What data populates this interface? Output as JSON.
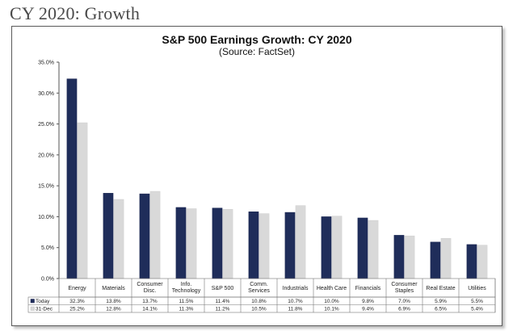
{
  "slide": {
    "title": "CY 2020: Growth"
  },
  "chart_data": {
    "type": "bar",
    "title": "S&P 500 Earnings Growth: CY 2020",
    "subtitle": "(Source: FactSet)",
    "categories": [
      [
        "Energy"
      ],
      [
        "Materials"
      ],
      [
        "Consumer",
        "Disc."
      ],
      [
        "Info.",
        "Technology"
      ],
      [
        "S&P 500"
      ],
      [
        "Comm.",
        "Services"
      ],
      [
        "Industrials"
      ],
      [
        "Health Care"
      ],
      [
        "Financials"
      ],
      [
        "Consumer",
        "Staples"
      ],
      [
        "Real Estate"
      ],
      [
        "Utilities"
      ]
    ],
    "series": [
      {
        "name": "Today",
        "color": "#1f2d5a",
        "values": [
          32.3,
          13.8,
          13.7,
          11.5,
          11.4,
          10.8,
          10.7,
          10.0,
          9.8,
          7.0,
          5.9,
          5.5
        ],
        "labels": [
          "32.3%",
          "13.8%",
          "13.7%",
          "11.5%",
          "11.4%",
          "10.8%",
          "10.7%",
          "10.0%",
          "9.8%",
          "7.0%",
          "5.9%",
          "5.5%"
        ]
      },
      {
        "name": "31-Dec",
        "color": "#d9d9d9",
        "values": [
          25.2,
          12.8,
          14.1,
          11.3,
          11.2,
          10.5,
          11.8,
          10.1,
          9.4,
          6.9,
          6.5,
          5.4
        ],
        "labels": [
          "25.2%",
          "12.8%",
          "14.1%",
          "11.3%",
          "11.2%",
          "10.5%",
          "11.8%",
          "10.1%",
          "9.4%",
          "6.9%",
          "6.5%",
          "5.4%"
        ]
      }
    ],
    "ylim": [
      0,
      35
    ],
    "yticks": [
      "0.0%",
      "5.0%",
      "10.0%",
      "15.0%",
      "20.0%",
      "25.0%",
      "30.0%",
      "35.0%"
    ],
    "ytick_values": [
      0,
      5,
      10,
      15,
      20,
      25,
      30,
      35
    ],
    "legend": "data-table-below",
    "grid": false
  }
}
